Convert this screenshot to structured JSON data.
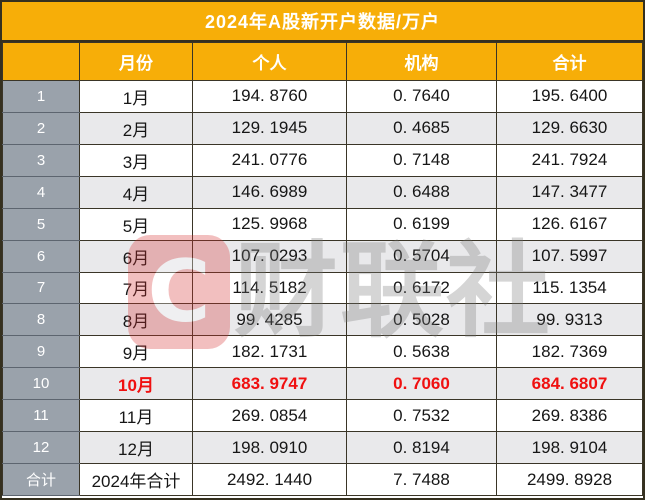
{
  "title": "2024年A股新开户数据/万户",
  "header": {
    "month": "月份",
    "personal": "个人",
    "institution": "机构",
    "total": "合计"
  },
  "rows": [
    {
      "num": "1",
      "month": "1月",
      "personal": "194. 8760",
      "institution": "0. 7640",
      "total": "195. 6400"
    },
    {
      "num": "2",
      "month": "2月",
      "personal": "129. 1945",
      "institution": "0. 4685",
      "total": "129. 6630"
    },
    {
      "num": "3",
      "month": "3月",
      "personal": "241. 0776",
      "institution": "0. 7148",
      "total": "241. 7924"
    },
    {
      "num": "4",
      "month": "4月",
      "personal": "146. 6989",
      "institution": "0. 6488",
      "total": "147. 3477"
    },
    {
      "num": "5",
      "month": "5月",
      "personal": "125. 9968",
      "institution": "0. 6199",
      "total": "126. 6167"
    },
    {
      "num": "6",
      "month": "6月",
      "personal": "107. 0293",
      "institution": "0. 5704",
      "total": "107. 5997"
    },
    {
      "num": "7",
      "month": "7月",
      "personal": "114. 5182",
      "institution": "0. 6172",
      "total": "115. 1354"
    },
    {
      "num": "8",
      "month": "8月",
      "personal": "99. 4285",
      "institution": "0. 5028",
      "total": "99. 9313"
    },
    {
      "num": "9",
      "month": "9月",
      "personal": "182. 1731",
      "institution": "0. 5638",
      "total": "182. 7369"
    },
    {
      "num": "10",
      "month": "10月",
      "personal": "683. 9747",
      "institution": "0. 7060",
      "total": "684. 6807"
    },
    {
      "num": "11",
      "month": "11月",
      "personal": "269. 0854",
      "institution": "0. 7532",
      "total": "269. 8386"
    },
    {
      "num": "12",
      "month": "12月",
      "personal": "198. 0910",
      "institution": "0. 8194",
      "total": "198. 9104"
    }
  ],
  "total_row": {
    "num": "合计",
    "month": "2024年合计",
    "personal": "2492. 1440",
    "institution": "7. 7488",
    "total": "2499. 8928"
  },
  "watermark": {
    "logo_letter": "C",
    "text": "财联社"
  },
  "colors": {
    "accent_orange": "#F7AE08",
    "row_number_gray": "#9AA2AB",
    "band_gray": "#E9E9EB",
    "highlight_red": "#F01010",
    "border_dark": "#3A3527"
  },
  "chart_data": {
    "type": "table",
    "title": "2024年A股新开户数据/万户",
    "columns": [
      "月份",
      "个人",
      "机构",
      "合计"
    ],
    "categories": [
      "1月",
      "2月",
      "3月",
      "4月",
      "5月",
      "6月",
      "7月",
      "8月",
      "9月",
      "10月",
      "11月",
      "12月"
    ],
    "series": [
      {
        "name": "个人",
        "values": [
          194.876,
          129.1945,
          241.0776,
          146.6989,
          125.9968,
          107.0293,
          114.5182,
          99.4285,
          182.1731,
          683.9747,
          269.0854,
          198.091
        ]
      },
      {
        "name": "机构",
        "values": [
          0.764,
          0.4685,
          0.7148,
          0.6488,
          0.6199,
          0.5704,
          0.6172,
          0.5028,
          0.5638,
          0.706,
          0.7532,
          0.8194
        ]
      },
      {
        "name": "合计",
        "values": [
          195.64,
          129.663,
          241.7924,
          147.3477,
          126.6167,
          107.5997,
          115.1354,
          99.9313,
          182.7369,
          684.6807,
          269.8386,
          198.9104
        ]
      }
    ],
    "totals": {
      "label": "2024年合计",
      "个人": 2492.144,
      "机构": 7.7488,
      "合计": 2499.8928
    },
    "unit": "万户",
    "highlighted_category": "10月"
  }
}
